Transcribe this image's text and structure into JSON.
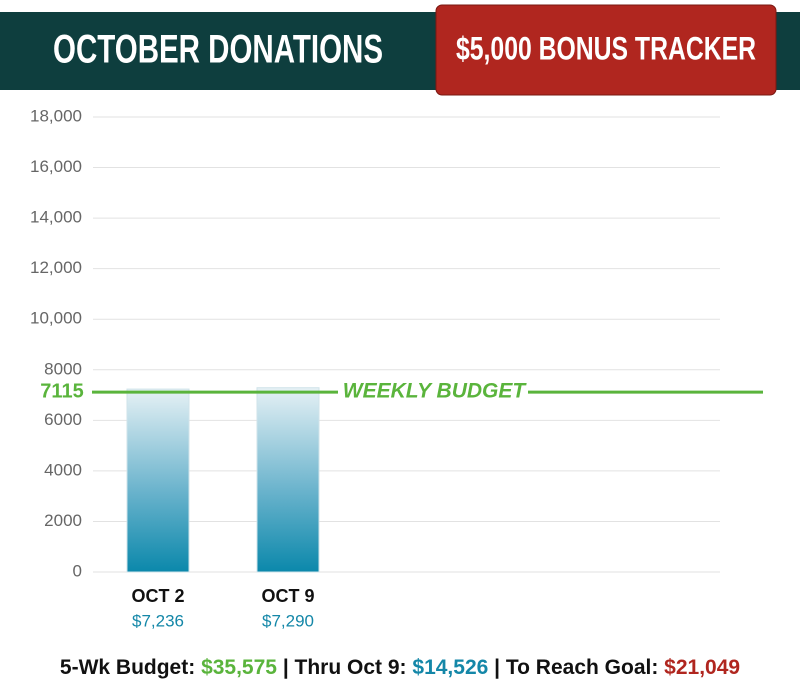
{
  "chart_data": {
    "type": "bar",
    "title": "OCTOBER DONATIONS",
    "badge": "$5,000 BONUS TRACKER",
    "categories": [
      "OCT 2",
      "OCT 9"
    ],
    "values": [
      7236,
      7290
    ],
    "value_labels": [
      "$7,236",
      "$7,290"
    ],
    "ylim": [
      0,
      18000
    ],
    "yticks": [
      0,
      2000,
      4000,
      6000,
      8000,
      {
        "value": 10000,
        "label": "10,000"
      },
      {
        "value": 12000,
        "label": "12,000"
      },
      {
        "value": 14000,
        "label": "14,000"
      },
      {
        "value": 16000,
        "label": "16,000"
      },
      {
        "value": 18000,
        "label": "18,000"
      }
    ],
    "grid": true,
    "reference_line": {
      "value": 7115,
      "label": "WEEKLY BUDGET",
      "color": "#5ab43c"
    },
    "summary": [
      {
        "label": "5-Wk Budget:",
        "value": "$35,575",
        "color": "#5ab43c"
      },
      {
        "label": "Thru Oct 9:",
        "value": "$14,526",
        "color": "#1487a8"
      },
      {
        "label": "To Reach Goal:",
        "value": "$21,049",
        "color": "#b0261f"
      }
    ]
  }
}
